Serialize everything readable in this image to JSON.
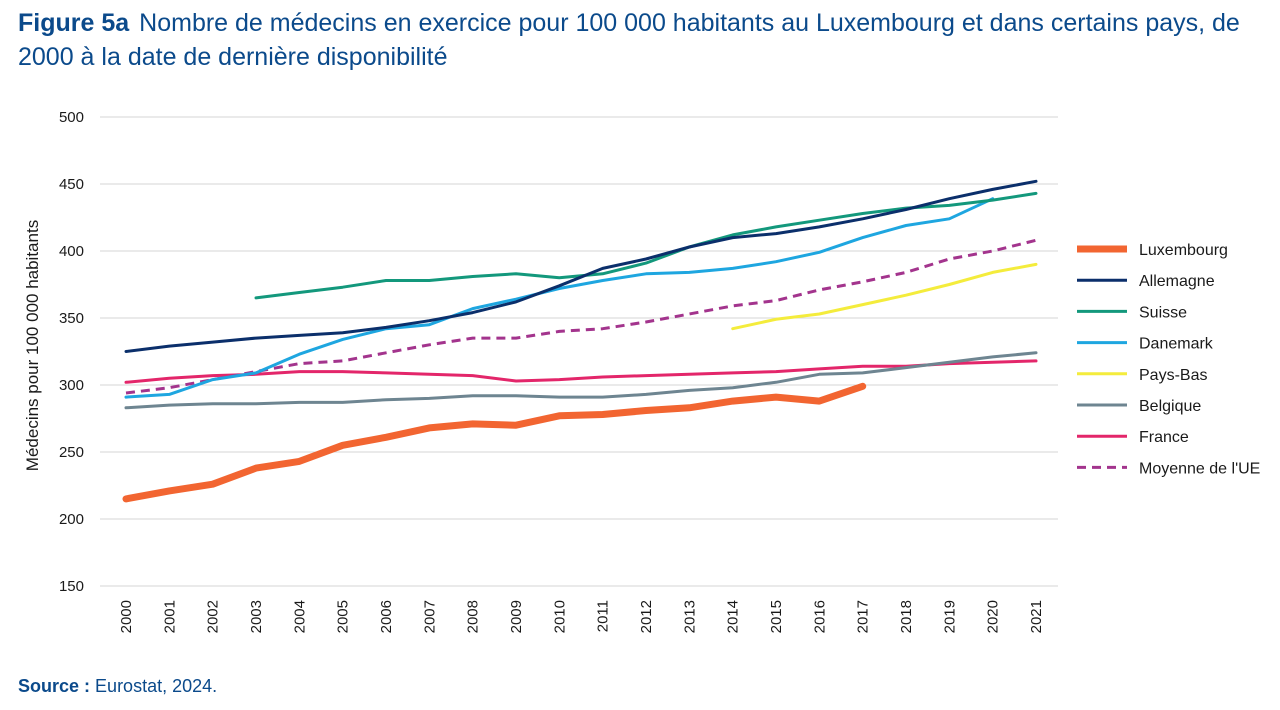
{
  "figure": {
    "number": "Figure 5a",
    "title": "Nombre de médecins en exercice pour 100 000 habitants au Luxembourg et dans certains pays, de 2000 à la date de dernière disponibilité"
  },
  "source": {
    "label": "Source :",
    "text": "Eurostat, 2024."
  },
  "chart_data": {
    "type": "line",
    "ylabel": "Médecins pour 100 000 habitants",
    "xlabel": "",
    "ylim": [
      150,
      500
    ],
    "yticks": [
      150,
      200,
      250,
      300,
      350,
      400,
      450,
      500
    ],
    "grid": "horizontal",
    "legend_position": "right",
    "x": [
      "2000",
      "2001",
      "2002",
      "2003",
      "2004",
      "2005",
      "2006",
      "2007",
      "2008",
      "2009",
      "2010",
      "2011",
      "2012",
      "2013",
      "2014",
      "2015",
      "2016",
      "2017",
      "2018",
      "2019",
      "2020",
      "2021"
    ],
    "series": [
      {
        "name": "Luxembourg",
        "color": "#f26531",
        "dashed": false,
        "bold": true,
        "values": [
          215,
          221,
          226,
          238,
          243,
          255,
          261,
          268,
          271,
          270,
          277,
          278,
          281,
          283,
          288,
          291,
          288,
          299,
          null,
          null,
          null,
          null
        ]
      },
      {
        "name": "Allemagne",
        "color": "#0b2f6b",
        "dashed": false,
        "bold": false,
        "values": [
          325,
          329,
          332,
          335,
          337,
          339,
          343,
          348,
          354,
          362,
          374,
          387,
          394,
          403,
          410,
          413,
          418,
          424,
          431,
          439,
          446,
          452
        ]
      },
      {
        "name": "Suisse",
        "color": "#13987c",
        "dashed": false,
        "bold": false,
        "values": [
          null,
          null,
          null,
          365,
          369,
          373,
          378,
          378,
          381,
          383,
          380,
          383,
          391,
          403,
          412,
          418,
          423,
          428,
          432,
          434,
          438,
          443
        ]
      },
      {
        "name": "Danemark",
        "color": "#1ea6e0",
        "dashed": false,
        "bold": false,
        "values": [
          291,
          293,
          304,
          309,
          323,
          334,
          342,
          345,
          357,
          364,
          372,
          378,
          383,
          384,
          387,
          392,
          399,
          410,
          419,
          424,
          439,
          null
        ]
      },
      {
        "name": "Pays-Bas",
        "color": "#f4ec3c",
        "dashed": false,
        "bold": false,
        "values": [
          null,
          null,
          null,
          null,
          null,
          null,
          null,
          null,
          null,
          null,
          null,
          null,
          null,
          null,
          342,
          349,
          353,
          360,
          367,
          375,
          384,
          390
        ]
      },
      {
        "name": "Belgique",
        "color": "#6e8591",
        "dashed": false,
        "bold": false,
        "values": [
          283,
          285,
          286,
          286,
          287,
          287,
          289,
          290,
          292,
          292,
          291,
          291,
          293,
          296,
          298,
          302,
          308,
          309,
          313,
          317,
          321,
          324
        ]
      },
      {
        "name": "France",
        "color": "#e3266a",
        "dashed": false,
        "bold": false,
        "values": [
          302,
          305,
          307,
          308,
          310,
          310,
          309,
          308,
          307,
          303,
          304,
          306,
          307,
          308,
          309,
          310,
          312,
          314,
          314,
          316,
          317,
          318
        ]
      },
      {
        "name": "Moyenne de l'UE",
        "color": "#a3348d",
        "dashed": true,
        "bold": false,
        "values": [
          294,
          298,
          304,
          310,
          316,
          318,
          324,
          330,
          335,
          335,
          340,
          342,
          347,
          353,
          359,
          363,
          371,
          377,
          384,
          394,
          400,
          408
        ]
      }
    ]
  }
}
